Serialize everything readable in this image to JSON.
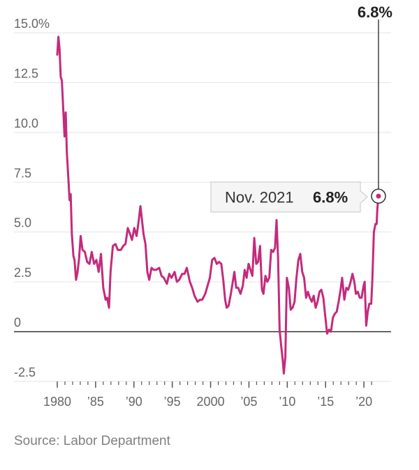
{
  "chart_data": {
    "type": "line",
    "series_color": "#c42a7c",
    "y_tick_labels": [
      "15.0%",
      "12.5",
      "10.0",
      "7.5",
      "5.0",
      "2.5",
      "0",
      "-2.5"
    ],
    "y_ticks": [
      15,
      12.5,
      10,
      7.5,
      5,
      2.5,
      0,
      -2.5
    ],
    "ylim": [
      -2.5,
      15
    ],
    "x_tick_labels": [
      "1980",
      "’85",
      "’90",
      "’95",
      "2000",
      "’05",
      "’10",
      "’15",
      "’20"
    ],
    "x_ticks": [
      1980,
      1985,
      1990,
      1995,
      2000,
      2005,
      2010,
      2015,
      2020
    ],
    "xlim": [
      1980,
      2021.9
    ],
    "grid": true,
    "series": [
      {
        "points": [
          [
            1980.0,
            13.9
          ],
          [
            1980.15,
            14.8
          ],
          [
            1980.3,
            14.2
          ],
          [
            1980.45,
            12.8
          ],
          [
            1980.6,
            12.6
          ],
          [
            1980.8,
            11.0
          ],
          [
            1980.95,
            9.8
          ],
          [
            1981.1,
            11.0
          ],
          [
            1981.25,
            9.0
          ],
          [
            1981.4,
            8.0
          ],
          [
            1981.6,
            6.6
          ],
          [
            1981.75,
            6.9
          ],
          [
            1981.9,
            4.9
          ],
          [
            1982.1,
            3.8
          ],
          [
            1982.25,
            3.6
          ],
          [
            1982.45,
            2.6
          ],
          [
            1982.65,
            3.0
          ],
          [
            1982.85,
            3.7
          ],
          [
            1983.05,
            4.8
          ],
          [
            1983.3,
            4.1
          ],
          [
            1983.6,
            4.0
          ],
          [
            1983.9,
            3.5
          ],
          [
            1984.2,
            3.4
          ],
          [
            1984.5,
            4.0
          ],
          [
            1984.8,
            3.4
          ],
          [
            1985.1,
            3.6
          ],
          [
            1985.4,
            3.0
          ],
          [
            1985.7,
            3.9
          ],
          [
            1986.0,
            2.2
          ],
          [
            1986.3,
            1.6
          ],
          [
            1986.5,
            1.7
          ],
          [
            1986.75,
            1.2
          ],
          [
            1986.95,
            3.0
          ],
          [
            1987.25,
            4.3
          ],
          [
            1987.6,
            4.4
          ],
          [
            1987.9,
            4.1
          ],
          [
            1988.3,
            4.1
          ],
          [
            1988.6,
            4.3
          ],
          [
            1988.9,
            4.4
          ],
          [
            1989.2,
            5.2
          ],
          [
            1989.5,
            4.9
          ],
          [
            1989.75,
            4.6
          ],
          [
            1990.05,
            5.2
          ],
          [
            1990.35,
            4.8
          ],
          [
            1990.6,
            5.5
          ],
          [
            1990.85,
            6.3
          ],
          [
            1991.05,
            5.6
          ],
          [
            1991.25,
            4.9
          ],
          [
            1991.5,
            4.4
          ],
          [
            1991.75,
            3.0
          ],
          [
            1992.0,
            2.6
          ],
          [
            1992.3,
            3.2
          ],
          [
            1992.6,
            3.1
          ],
          [
            1992.9,
            3.1
          ],
          [
            1993.3,
            3.2
          ],
          [
            1993.6,
            2.8
          ],
          [
            1993.9,
            2.7
          ],
          [
            1994.3,
            2.4
          ],
          [
            1994.6,
            2.9
          ],
          [
            1994.9,
            2.7
          ],
          [
            1995.3,
            3.0
          ],
          [
            1995.6,
            2.5
          ],
          [
            1995.9,
            2.6
          ],
          [
            1996.3,
            2.9
          ],
          [
            1996.6,
            2.9
          ],
          [
            1996.9,
            3.2
          ],
          [
            1997.3,
            2.5
          ],
          [
            1997.6,
            2.2
          ],
          [
            1997.9,
            1.8
          ],
          [
            1998.3,
            1.5
          ],
          [
            1998.6,
            1.6
          ],
          [
            1998.9,
            1.6
          ],
          [
            1999.3,
            1.9
          ],
          [
            1999.6,
            2.3
          ],
          [
            1999.9,
            2.7
          ],
          [
            2000.2,
            3.6
          ],
          [
            2000.5,
            3.7
          ],
          [
            2000.8,
            3.4
          ],
          [
            2001.1,
            3.5
          ],
          [
            2001.4,
            3.4
          ],
          [
            2001.65,
            2.6
          ],
          [
            2001.9,
            1.6
          ],
          [
            2002.1,
            1.2
          ],
          [
            2002.35,
            1.3
          ],
          [
            2002.6,
            1.8
          ],
          [
            2002.85,
            2.4
          ],
          [
            2003.1,
            3.0
          ],
          [
            2003.35,
            2.2
          ],
          [
            2003.6,
            2.2
          ],
          [
            2003.9,
            1.9
          ],
          [
            2004.2,
            2.3
          ],
          [
            2004.45,
            3.1
          ],
          [
            2004.7,
            2.7
          ],
          [
            2004.95,
            3.4
          ],
          [
            2005.2,
            3.1
          ],
          [
            2005.45,
            2.8
          ],
          [
            2005.7,
            4.7
          ],
          [
            2005.95,
            3.4
          ],
          [
            2006.2,
            3.5
          ],
          [
            2006.45,
            4.3
          ],
          [
            2006.7,
            2.1
          ],
          [
            2006.9,
            1.9
          ],
          [
            2007.15,
            2.8
          ],
          [
            2007.4,
            2.5
          ],
          [
            2007.65,
            2.7
          ],
          [
            2007.9,
            4.1
          ],
          [
            2008.15,
            4.0
          ],
          [
            2008.4,
            4.2
          ],
          [
            2008.6,
            5.6
          ],
          [
            2008.8,
            3.7
          ],
          [
            2009.0,
            0.1
          ],
          [
            2009.2,
            -0.7
          ],
          [
            2009.4,
            -1.4
          ],
          [
            2009.55,
            -2.1
          ],
          [
            2009.75,
            -1.3
          ],
          [
            2009.95,
            2.7
          ],
          [
            2010.2,
            2.2
          ],
          [
            2010.45,
            1.1
          ],
          [
            2010.7,
            1.2
          ],
          [
            2010.95,
            1.5
          ],
          [
            2011.2,
            2.7
          ],
          [
            2011.45,
            3.6
          ],
          [
            2011.7,
            3.9
          ],
          [
            2011.95,
            3.0
          ],
          [
            2012.2,
            2.7
          ],
          [
            2012.45,
            1.7
          ],
          [
            2012.7,
            2.0
          ],
          [
            2012.95,
            1.7
          ],
          [
            2013.2,
            1.5
          ],
          [
            2013.45,
            1.8
          ],
          [
            2013.7,
            1.2
          ],
          [
            2013.95,
            1.5
          ],
          [
            2014.2,
            2.0
          ],
          [
            2014.45,
            2.1
          ],
          [
            2014.7,
            1.7
          ],
          [
            2014.95,
            0.8
          ],
          [
            2015.2,
            -0.1
          ],
          [
            2015.45,
            0.1
          ],
          [
            2015.7,
            0.0
          ],
          [
            2015.95,
            0.7
          ],
          [
            2016.2,
            0.9
          ],
          [
            2016.45,
            1.0
          ],
          [
            2016.7,
            1.5
          ],
          [
            2016.95,
            2.1
          ],
          [
            2017.15,
            2.7
          ],
          [
            2017.45,
            1.6
          ],
          [
            2017.7,
            2.2
          ],
          [
            2017.95,
            2.1
          ],
          [
            2018.2,
            2.4
          ],
          [
            2018.5,
            2.9
          ],
          [
            2018.75,
            2.5
          ],
          [
            2018.95,
            1.9
          ],
          [
            2019.2,
            2.0
          ],
          [
            2019.45,
            1.7
          ],
          [
            2019.7,
            1.7
          ],
          [
            2019.95,
            2.3
          ],
          [
            2020.1,
            2.5
          ],
          [
            2020.3,
            0.3
          ],
          [
            2020.5,
            1.0
          ],
          [
            2020.7,
            1.4
          ],
          [
            2020.95,
            1.4
          ],
          [
            2021.1,
            2.6
          ],
          [
            2021.3,
            5.0
          ],
          [
            2021.5,
            5.4
          ],
          [
            2021.65,
            5.4
          ],
          [
            2021.75,
            6.2
          ],
          [
            2021.9,
            6.8
          ]
        ]
      }
    ]
  },
  "annotation": {
    "top_value": "6.8%",
    "tooltip_date": "Nov. 2021",
    "tooltip_value": "6.8%",
    "point": [
      2021.9,
      6.8
    ]
  },
  "source": "Source: Labor Department"
}
